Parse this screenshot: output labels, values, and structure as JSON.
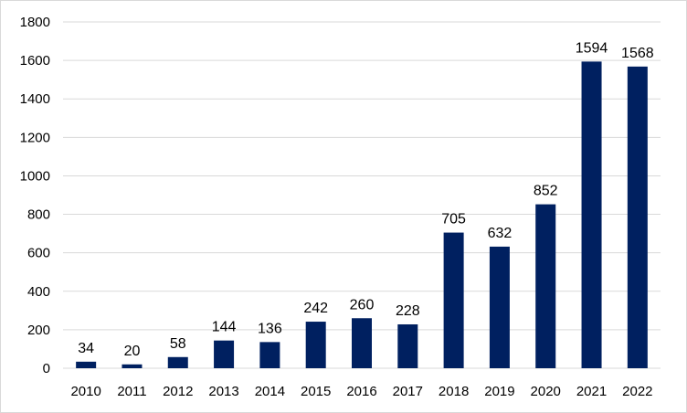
{
  "chart_data": {
    "type": "bar",
    "categories": [
      "2010",
      "2011",
      "2012",
      "2013",
      "2014",
      "2015",
      "2016",
      "2017",
      "2018",
      "2019",
      "2020",
      "2021",
      "2022"
    ],
    "values": [
      34,
      20,
      58,
      144,
      136,
      242,
      260,
      228,
      705,
      632,
      852,
      1594,
      1568
    ],
    "data_labels": [
      "34",
      "20",
      "58",
      "144",
      "136",
      "242",
      "260",
      "228",
      "705",
      "632",
      "852",
      "1594",
      "1568"
    ],
    "y_ticks": [
      "0",
      "200",
      "400",
      "600",
      "800",
      "1000",
      "1200",
      "1400",
      "1600",
      "1800"
    ],
    "title": "",
    "xlabel": "",
    "ylabel": "",
    "ylim": [
      0,
      1800
    ],
    "grid": true,
    "legend": "none",
    "bar_color": "#002060",
    "grid_color": "#d9d9d9"
  }
}
